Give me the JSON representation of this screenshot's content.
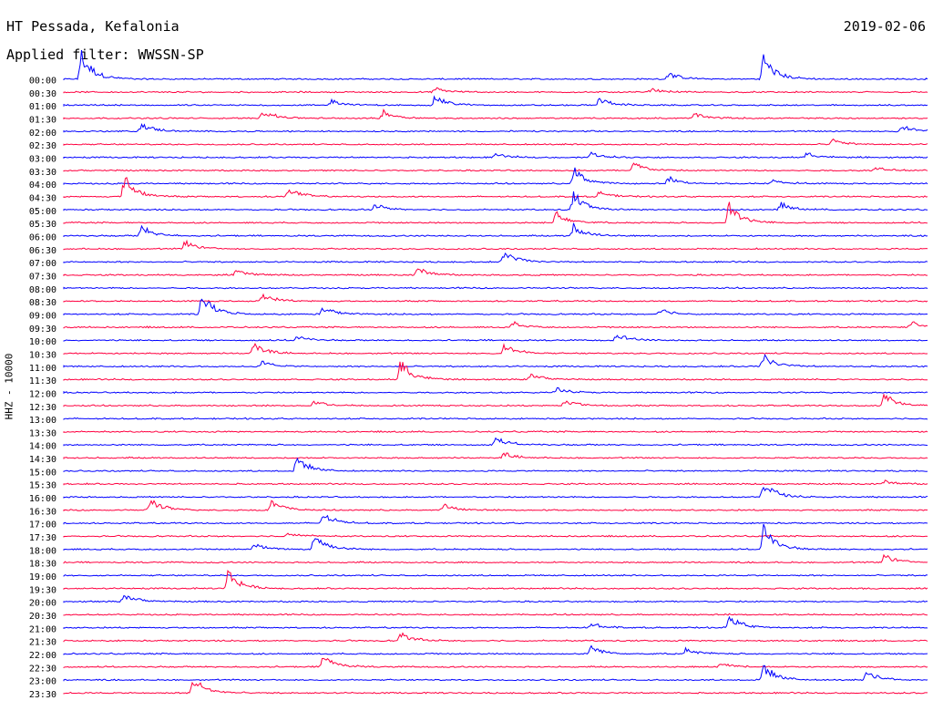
{
  "header": {
    "station": "HT Pessada, Kefalonia",
    "date": "2019-02-06",
    "filter": "Applied filter: WWSSN-SP"
  },
  "axis": {
    "ylabel": "HHZ - 10000"
  },
  "colors": {
    "trace_a": "#0000ff",
    "trace_b": "#ff0040",
    "background": "#ffffff",
    "text": "#000000"
  },
  "chart_data": {
    "type": "helicorder",
    "ylabel": "HHZ - 10000",
    "rows": [
      "00:00",
      "00:30",
      "01:00",
      "01:30",
      "02:00",
      "02:30",
      "03:00",
      "03:30",
      "04:00",
      "04:30",
      "05:00",
      "05:30",
      "06:00",
      "06:30",
      "07:00",
      "07:30",
      "08:00",
      "08:30",
      "09:00",
      "09:30",
      "10:00",
      "10:30",
      "11:00",
      "11:30",
      "12:00",
      "12:30",
      "13:00",
      "13:30",
      "14:00",
      "14:30",
      "15:00",
      "15:30",
      "16:00",
      "16:30",
      "17:00",
      "17:30",
      "18:00",
      "18:30",
      "19:00",
      "19:30",
      "20:00",
      "20:30",
      "21:00",
      "21:30",
      "22:00",
      "22:30",
      "23:00",
      "23:30"
    ],
    "row_minutes": 30,
    "series_colors": [
      "#0000ff",
      "#ff0040"
    ],
    "events": [
      {
        "row": 0,
        "t": 0.02,
        "amp": 3.5
      },
      {
        "row": 0,
        "t": 0.7,
        "amp": 0.8
      },
      {
        "row": 0,
        "t": 0.81,
        "amp": 3.0
      },
      {
        "row": 1,
        "t": 0.43,
        "amp": 0.5
      },
      {
        "row": 1,
        "t": 0.68,
        "amp": 0.4
      },
      {
        "row": 2,
        "t": 0.31,
        "amp": 0.7
      },
      {
        "row": 2,
        "t": 0.43,
        "amp": 1.2
      },
      {
        "row": 2,
        "t": 0.62,
        "amp": 0.9
      },
      {
        "row": 3,
        "t": 0.23,
        "amp": 1.1
      },
      {
        "row": 3,
        "t": 0.37,
        "amp": 1.0
      },
      {
        "row": 3,
        "t": 0.73,
        "amp": 0.6
      },
      {
        "row": 4,
        "t": 0.09,
        "amp": 1.0
      },
      {
        "row": 4,
        "t": 0.97,
        "amp": 0.8
      },
      {
        "row": 5,
        "t": 0.89,
        "amp": 0.6
      },
      {
        "row": 6,
        "t": 0.5,
        "amp": 0.4
      },
      {
        "row": 6,
        "t": 0.61,
        "amp": 0.6
      },
      {
        "row": 6,
        "t": 0.86,
        "amp": 0.6
      },
      {
        "row": 7,
        "t": 0.66,
        "amp": 1.0
      },
      {
        "row": 7,
        "t": 0.94,
        "amp": 0.5
      },
      {
        "row": 8,
        "t": 0.59,
        "amp": 2.0
      },
      {
        "row": 8,
        "t": 0.7,
        "amp": 0.8
      },
      {
        "row": 8,
        "t": 0.82,
        "amp": 0.5
      },
      {
        "row": 9,
        "t": 0.07,
        "amp": 2.6
      },
      {
        "row": 9,
        "t": 0.26,
        "amp": 1.1
      },
      {
        "row": 9,
        "t": 0.62,
        "amp": 0.6
      },
      {
        "row": 10,
        "t": 0.36,
        "amp": 0.7
      },
      {
        "row": 10,
        "t": 0.59,
        "amp": 2.2
      },
      {
        "row": 10,
        "t": 0.83,
        "amp": 0.8
      },
      {
        "row": 11,
        "t": 0.57,
        "amp": 1.6
      },
      {
        "row": 11,
        "t": 0.77,
        "amp": 2.4
      },
      {
        "row": 12,
        "t": 0.09,
        "amp": 1.2
      },
      {
        "row": 12,
        "t": 0.59,
        "amp": 1.4
      },
      {
        "row": 13,
        "t": 0.14,
        "amp": 1.0
      },
      {
        "row": 14,
        "t": 0.51,
        "amp": 1.4
      },
      {
        "row": 15,
        "t": 0.2,
        "amp": 0.6
      },
      {
        "row": 15,
        "t": 0.41,
        "amp": 0.9
      },
      {
        "row": 17,
        "t": 0.23,
        "amp": 0.9
      },
      {
        "row": 18,
        "t": 0.16,
        "amp": 2.5
      },
      {
        "row": 18,
        "t": 0.3,
        "amp": 0.9
      },
      {
        "row": 18,
        "t": 0.69,
        "amp": 0.7
      },
      {
        "row": 19,
        "t": 0.52,
        "amp": 0.6
      },
      {
        "row": 19,
        "t": 0.98,
        "amp": 0.7
      },
      {
        "row": 20,
        "t": 0.27,
        "amp": 0.5
      },
      {
        "row": 20,
        "t": 0.64,
        "amp": 0.9
      },
      {
        "row": 21,
        "t": 0.22,
        "amp": 1.2
      },
      {
        "row": 21,
        "t": 0.51,
        "amp": 1.1
      },
      {
        "row": 22,
        "t": 0.23,
        "amp": 0.6
      },
      {
        "row": 22,
        "t": 0.81,
        "amp": 1.4
      },
      {
        "row": 23,
        "t": 0.39,
        "amp": 2.5
      },
      {
        "row": 23,
        "t": 0.54,
        "amp": 0.8
      },
      {
        "row": 24,
        "t": 0.57,
        "amp": 0.6
      },
      {
        "row": 25,
        "t": 0.29,
        "amp": 0.6
      },
      {
        "row": 25,
        "t": 0.58,
        "amp": 0.8
      },
      {
        "row": 25,
        "t": 0.95,
        "amp": 1.6
      },
      {
        "row": 28,
        "t": 0.5,
        "amp": 0.9
      },
      {
        "row": 29,
        "t": 0.51,
        "amp": 0.6
      },
      {
        "row": 30,
        "t": 0.27,
        "amp": 1.8
      },
      {
        "row": 31,
        "t": 0.95,
        "amp": 0.4
      },
      {
        "row": 32,
        "t": 0.81,
        "amp": 2.0
      },
      {
        "row": 33,
        "t": 0.1,
        "amp": 1.5
      },
      {
        "row": 33,
        "t": 0.24,
        "amp": 1.2
      },
      {
        "row": 33,
        "t": 0.44,
        "amp": 0.7
      },
      {
        "row": 34,
        "t": 0.3,
        "amp": 1.2
      },
      {
        "row": 35,
        "t": 0.26,
        "amp": 0.5
      },
      {
        "row": 36,
        "t": 0.22,
        "amp": 0.7
      },
      {
        "row": 36,
        "t": 0.29,
        "amp": 2.0
      },
      {
        "row": 36,
        "t": 0.81,
        "amp": 3.0
      },
      {
        "row": 37,
        "t": 0.95,
        "amp": 1.0
      },
      {
        "row": 39,
        "t": 0.19,
        "amp": 2.3
      },
      {
        "row": 40,
        "t": 0.07,
        "amp": 1.0
      },
      {
        "row": 42,
        "t": 0.77,
        "amp": 1.6
      },
      {
        "row": 42,
        "t": 0.61,
        "amp": 0.6
      },
      {
        "row": 43,
        "t": 0.39,
        "amp": 0.9
      },
      {
        "row": 44,
        "t": 0.61,
        "amp": 1.0
      },
      {
        "row": 44,
        "t": 0.72,
        "amp": 0.6
      },
      {
        "row": 45,
        "t": 0.3,
        "amp": 1.5
      },
      {
        "row": 45,
        "t": 0.76,
        "amp": 0.6
      },
      {
        "row": 46,
        "t": 0.81,
        "amp": 2.0
      },
      {
        "row": 46,
        "t": 0.93,
        "amp": 1.2
      },
      {
        "row": 47,
        "t": 0.15,
        "amp": 2.0
      }
    ]
  }
}
